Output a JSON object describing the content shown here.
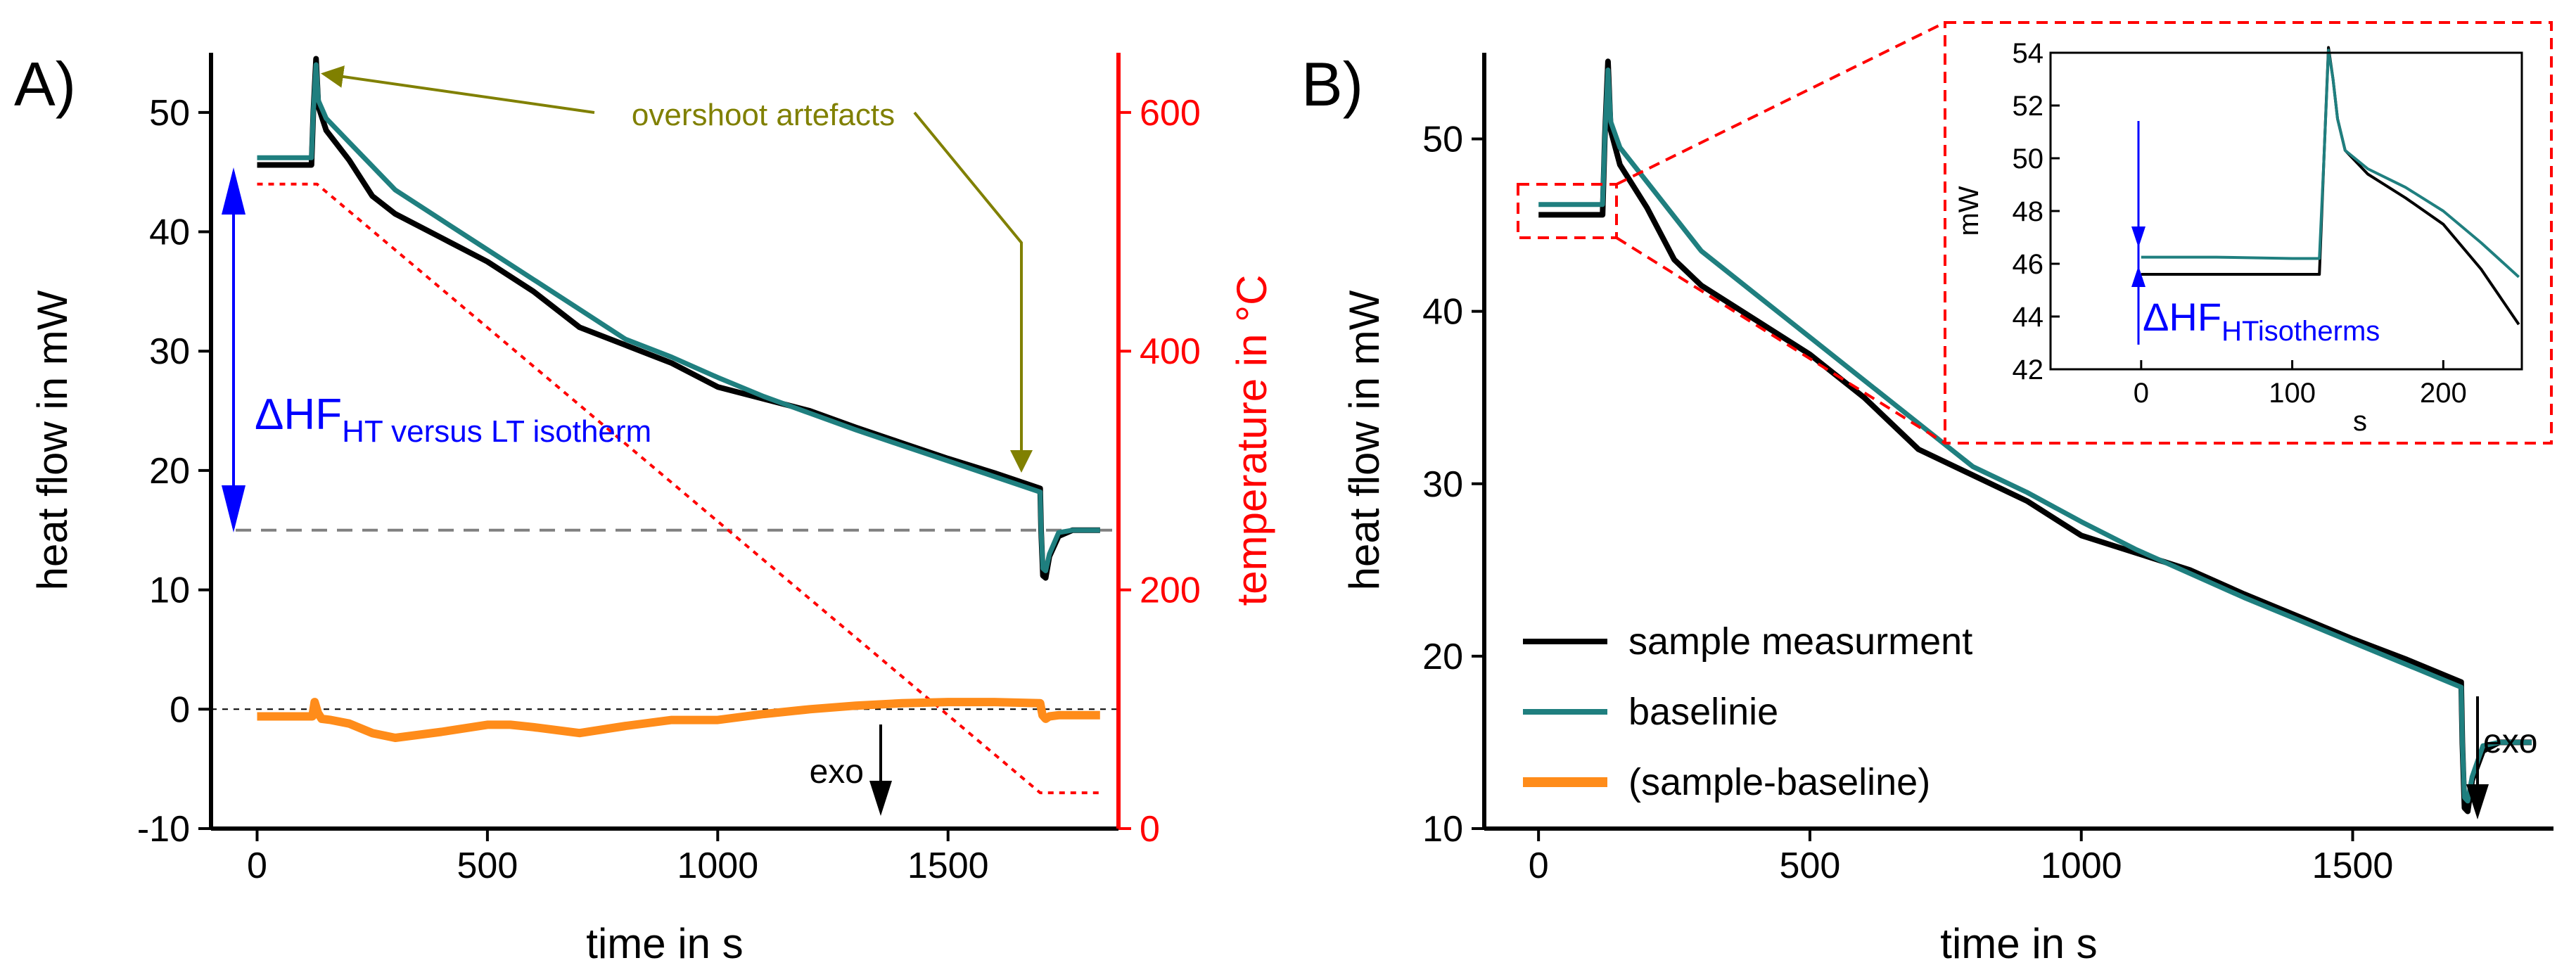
{
  "chart_data": [
    {
      "panel": "A)",
      "type": "line",
      "xlabel": "time in s",
      "ylabel": "heat flow in mW",
      "y2label": "temperature in °C",
      "xlim": [
        -100,
        1870
      ],
      "ylim": [
        -10,
        55
      ],
      "y2lim": [
        0,
        650
      ],
      "xticks": [
        0,
        500,
        1000,
        1500
      ],
      "yticks": [
        -10,
        0,
        10,
        20,
        30,
        40,
        50
      ],
      "y2ticks": [
        0,
        200,
        400,
        600
      ],
      "x_tick_labels": [
        "0",
        "500",
        "1000",
        "1500"
      ],
      "y_tick_labels": [
        "-10",
        "0",
        "10",
        "20",
        "30",
        "40",
        "50"
      ],
      "y2_tick_labels": [
        "0",
        "200",
        "400",
        "600"
      ],
      "series": [
        {
          "name": "sample measurment",
          "color": "#000000",
          "x": [
            0,
            100,
            118,
            122,
            128,
            133,
            150,
            200,
            250,
            300,
            400,
            500,
            600,
            700,
            800,
            900,
            1000,
            1100,
            1200,
            1300,
            1400,
            1500,
            1600,
            1700,
            1702,
            1706,
            1712,
            1720,
            1740,
            1770,
            1800,
            1830
          ],
          "y": [
            45.6,
            45.6,
            45.6,
            50,
            54.5,
            50.5,
            48.5,
            46,
            43,
            41.5,
            39.5,
            37.5,
            35,
            32,
            30.5,
            29,
            27,
            26,
            25,
            23.6,
            22.3,
            21,
            19.8,
            18.5,
            15,
            11.2,
            11,
            12.8,
            14.5,
            15,
            15,
            15
          ]
        },
        {
          "name": "baselinie",
          "color": "#1f7f7f",
          "x": [
            0,
            100,
            118,
            122,
            128,
            133,
            150,
            200,
            250,
            300,
            400,
            500,
            600,
            700,
            800,
            900,
            1000,
            1100,
            1200,
            1300,
            1400,
            1500,
            1600,
            1700,
            1702,
            1706,
            1712,
            1720,
            1740,
            1770,
            1800,
            1830
          ],
          "y": [
            46.2,
            46.2,
            46.2,
            50,
            54,
            51,
            49.5,
            47.5,
            45.5,
            43.5,
            41,
            38.5,
            36,
            33.5,
            31,
            29.5,
            27.8,
            26.2,
            24.8,
            23.4,
            22.1,
            20.8,
            19.5,
            18.2,
            15,
            11.8,
            11.6,
            13,
            14.8,
            15,
            15,
            15
          ]
        },
        {
          "name": "(sample-baseline)",
          "color": "#ff8c1a",
          "x": [
            0,
            100,
            120,
            125,
            132,
            140,
            160,
            200,
            250,
            300,
            400,
            500,
            550,
            600,
            700,
            800,
            900,
            1000,
            1100,
            1200,
            1300,
            1400,
            1500,
            1600,
            1700,
            1705,
            1712,
            1720,
            1740,
            1780,
            1830
          ],
          "y": [
            -0.6,
            -0.6,
            -0.6,
            0.6,
            -0.3,
            -0.8,
            -0.9,
            -1.2,
            -2,
            -2.4,
            -1.9,
            -1.3,
            -1.3,
            -1.5,
            -2,
            -1.4,
            -0.9,
            -0.9,
            -0.4,
            0,
            0.3,
            0.5,
            0.6,
            0.6,
            0.5,
            -0.5,
            -0.8,
            -0.6,
            -0.5,
            -0.5,
            -0.5
          ]
        },
        {
          "name": "temperature",
          "color": "#ff0000",
          "axis": "y2",
          "style": "dotted",
          "x": [
            0,
            130,
            1700,
            1830
          ],
          "y": [
            540,
            540,
            30,
            30
          ]
        }
      ],
      "reference_lines": [
        {
          "name": "HF level",
          "y": 15,
          "color": "#808080",
          "style": "dashed"
        },
        {
          "name": "zero line",
          "y": 0,
          "color": "#000000",
          "style": "dashed"
        }
      ],
      "annotations": [
        {
          "name": "overshoot-label",
          "text": "overshoot artefacts",
          "color": "#808000"
        },
        {
          "name": "delta-hf-label",
          "text": "ΔHF",
          "subscript": "HT versus LT isotherm",
          "color": "#0000ff"
        },
        {
          "name": "exo-label",
          "text": "exo"
        }
      ]
    },
    {
      "panel": "B)",
      "type": "line",
      "xlabel": "time in s",
      "ylabel": "heat flow in mW",
      "xlim": [
        -100,
        1870
      ],
      "ylim": [
        10,
        55
      ],
      "xticks": [
        0,
        500,
        1000,
        1500
      ],
      "yticks": [
        10,
        20,
        30,
        40,
        50
      ],
      "x_tick_labels": [
        "0",
        "500",
        "1000",
        "1500"
      ],
      "y_tick_labels": [
        "10",
        "20",
        "30",
        "40",
        "50"
      ],
      "legend": [
        "sample measurment",
        "baselinie",
        "(sample-baseline)"
      ],
      "legend_position": "bottom-left",
      "series_ref": "same as panel A heat flow curves",
      "annotations": [
        {
          "name": "exo-label",
          "text": "exo"
        }
      ],
      "inset": {
        "xlabel": "s",
        "ylabel": "mW",
        "xlim": [
          -60,
          252
        ],
        "ylim": [
          42,
          54
        ],
        "xticks": [
          0,
          100,
          200
        ],
        "yticks": [
          42,
          44,
          46,
          48,
          50,
          52,
          54
        ],
        "x_tick_labels": [
          "0",
          "100",
          "200"
        ],
        "y_tick_labels": [
          "42",
          "44",
          "46",
          "48",
          "50",
          "52",
          "54"
        ],
        "annotation": {
          "text": "ΔHF",
          "subscript": "HTisotherms",
          "color": "#0000ff"
        },
        "series": [
          {
            "name": "sample measurment",
            "color": "#000000",
            "x": [
              0,
              50,
              100,
              118,
              121,
              124,
              127,
              130,
              135,
              150,
              175,
              200,
              225,
              250
            ],
            "y": [
              45.6,
              45.6,
              45.6,
              45.6,
              50,
              54.2,
              53,
              51.5,
              50.3,
              49.4,
              48.5,
              47.5,
              45.8,
              43.7
            ]
          },
          {
            "name": "baselinie",
            "color": "#1f7f7f",
            "x": [
              0,
              50,
              100,
              118,
              121,
              124,
              127,
              130,
              135,
              150,
              175,
              200,
              225,
              250
            ],
            "y": [
              46.25,
              46.25,
              46.2,
              46.2,
              50,
              54.1,
              53,
              51.5,
              50.3,
              49.6,
              48.9,
              48,
              46.8,
              45.5
            ]
          }
        ]
      }
    }
  ]
}
